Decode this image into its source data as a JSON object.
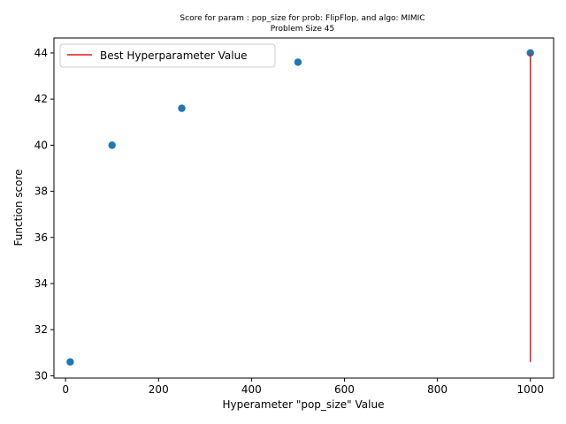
{
  "chart_data": {
    "type": "scatter",
    "title": "Score for param : pop_size for prob: FlipFlop, and algo: MIMIC",
    "subtitle": "Problem Size 45",
    "xlabel": "Hyperameter \"pop_size\" Value",
    "ylabel": "Function score",
    "xlim": [
      -25,
      1050
    ],
    "ylim": [
      29.9,
      44.65
    ],
    "xticks": [
      0,
      200,
      400,
      600,
      800,
      1000
    ],
    "yticks": [
      30,
      32,
      34,
      36,
      38,
      40,
      42,
      44
    ],
    "grid": false,
    "legend_position": "upper-left",
    "series": [
      {
        "color": "#1f77b4",
        "x": [
          10,
          100,
          250,
          500,
          1000
        ],
        "y": [
          30.6,
          40.0,
          41.6,
          43.6,
          44.0
        ]
      }
    ],
    "best_line": {
      "name": "Best Hyperparameter Value",
      "color": "#e31a1c",
      "x": 1000,
      "y_from": 30.6,
      "y_to": 44.0
    }
  }
}
